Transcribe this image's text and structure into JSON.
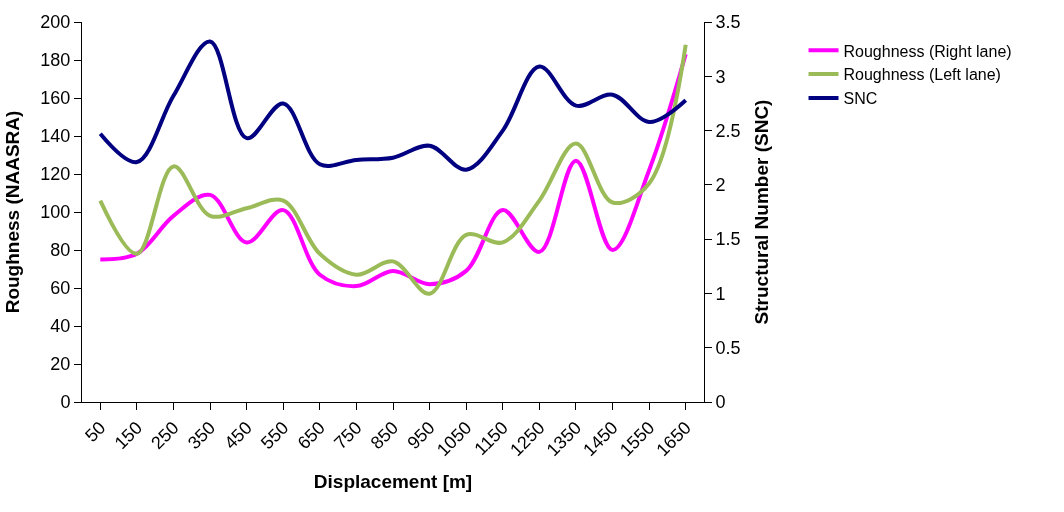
{
  "chart_data": {
    "type": "line",
    "xlabel": "Displacement [m]",
    "ylabel": "Roughness (NAASRA)",
    "y2label": "Structural Number (SNC)",
    "categories": [
      "50",
      "150",
      "250",
      "350",
      "450",
      "550",
      "650",
      "750",
      "850",
      "950",
      "1050",
      "1150",
      "1250",
      "1350",
      "1450",
      "1550",
      "1650"
    ],
    "series": [
      {
        "name": "Roughness (Right lane)",
        "color": "#ff00ff",
        "values": [
          75,
          78,
          98,
          109,
          84,
          101,
          67,
          61,
          69,
          62,
          69,
          101,
          79,
          127,
          80,
          122,
          183
        ]
      },
      {
        "name": "Roughness (Left lane)",
        "color": "#9bbb59",
        "values": [
          106,
          78,
          124,
          98,
          102,
          106,
          78,
          67,
          74,
          57,
          88,
          84,
          106,
          136,
          105,
          115,
          188
        ]
      },
      {
        "name": "SNC",
        "color": "#000080",
        "axis": "y2",
        "values": [
          2.47,
          2.21,
          2.82,
          3.32,
          2.43,
          2.75,
          2.19,
          2.23,
          2.25,
          2.36,
          2.14,
          2.5,
          3.09,
          2.73,
          2.83,
          2.58,
          2.78
        ]
      }
    ],
    "ylim": [
      0,
      200
    ],
    "yticks": [
      0,
      20,
      40,
      60,
      80,
      100,
      120,
      140,
      160,
      180,
      200
    ],
    "y2lim": [
      0,
      3.5
    ],
    "y2ticks": [
      0,
      0.5,
      1,
      1.5,
      2,
      2.5,
      3,
      3.5
    ],
    "legend": "right",
    "marker": "none",
    "line_style": "solid"
  }
}
